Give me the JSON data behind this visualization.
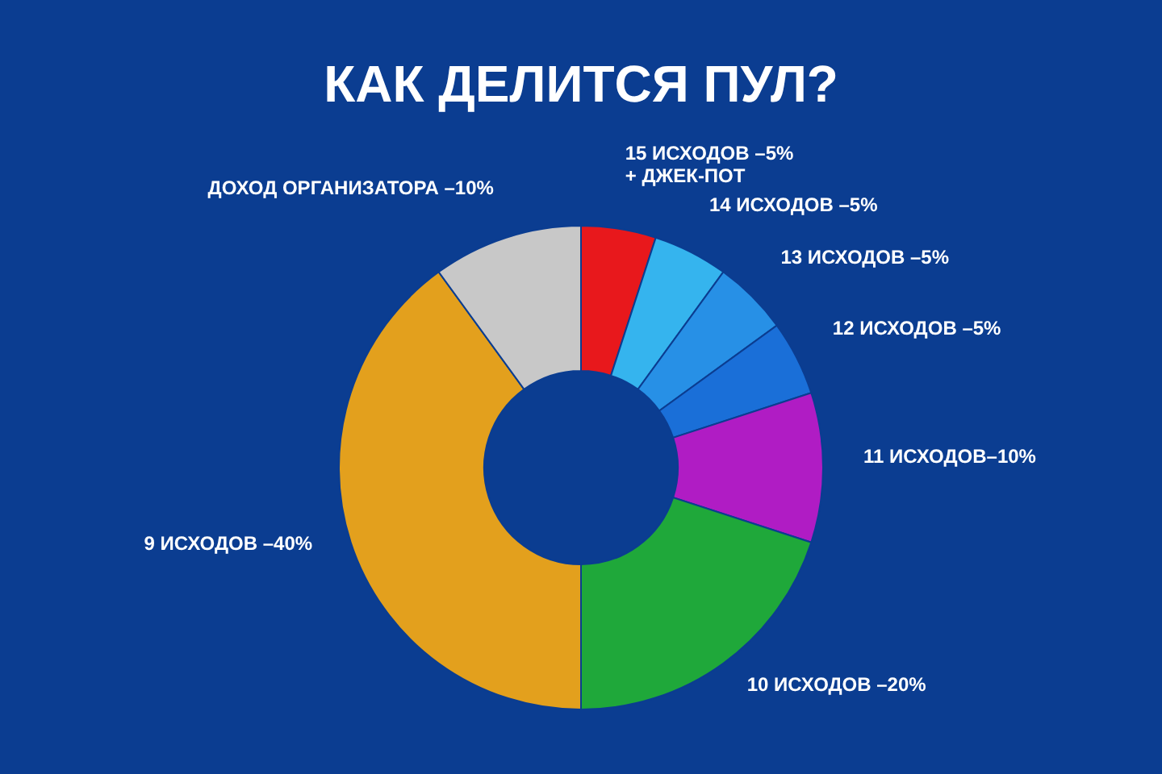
{
  "chart_data": {
    "type": "donut",
    "title": "КАК ДЕЛИТСЯ ПУЛ?",
    "categories": [
      "15 ИСХОДОВ –5%\n+ ДЖЕК-ПОТ",
      "14 ИСХОДОВ –5%",
      "13 ИСХОДОВ –5%",
      "12 ИСХОДОВ –5%",
      "11 ИСХОДОВ–10%",
      "10 ИСХОДОВ –20%",
      "9 ИСХОДОВ –40%",
      "ДОХОД ОРГАНИЗАТОРА –10%"
    ],
    "values": [
      5,
      5,
      5,
      5,
      10,
      20,
      40,
      10
    ],
    "colors": [
      "#e8181c",
      "#35b4ee",
      "#2790e6",
      "#1a6fd8",
      "#b01cc4",
      "#1fa83a",
      "#e3a01d",
      "#c8c8c8"
    ],
    "legend": false
  }
}
